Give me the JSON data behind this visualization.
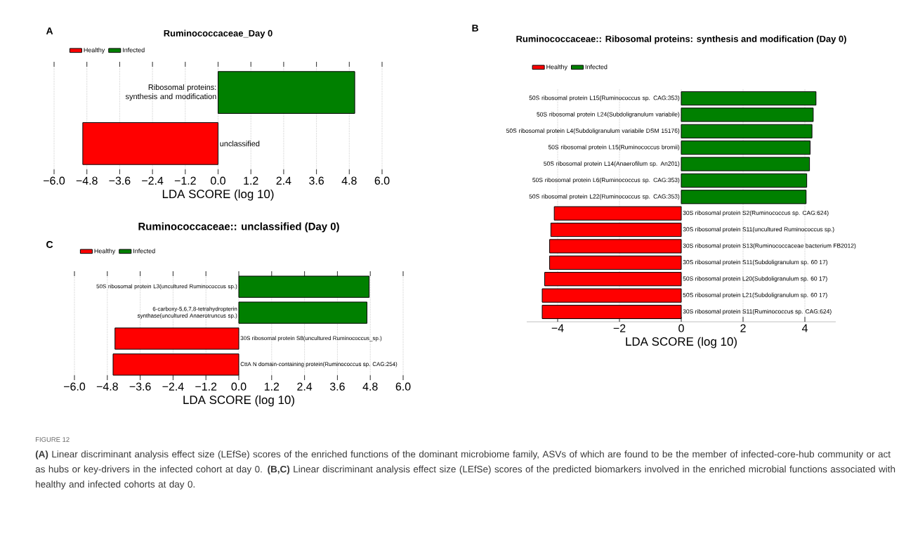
{
  "chart_data": [
    {
      "type": "bar",
      "orientation": "horizontal",
      "title": "Ruminococcaceae_Day 0",
      "xlabel": "LDA SCORE (log 10)",
      "categories": [
        "Ribosomal proteins: synthesis and modification",
        "unclassified"
      ],
      "series": [
        {
          "name": "Healthy",
          "color": "#ff0000",
          "values": [
            null,
            -4.95
          ]
        },
        {
          "name": "Infected",
          "color": "#008000",
          "values": [
            5.0,
            null
          ]
        }
      ],
      "xlim": [
        -6,
        6
      ],
      "xticks": [
        {
          "value": -6,
          "label": "−6.0"
        },
        {
          "value": -4.8,
          "label": "−4.8"
        },
        {
          "value": -3.6,
          "label": "−3.6"
        },
        {
          "value": -2.4,
          "label": "−2.4"
        },
        {
          "value": -1.2,
          "label": "−1.2"
        },
        {
          "value": 0,
          "label": "0.0"
        },
        {
          "value": 1.2,
          "label": "1.2"
        },
        {
          "value": 2.4,
          "label": "2.4"
        },
        {
          "value": 3.6,
          "label": "3.6"
        },
        {
          "value": 4.8,
          "label": "4.8"
        },
        {
          "value": 6,
          "label": "6.0"
        }
      ],
      "grid": "x",
      "legend": "top left",
      "annotations": [
        "A"
      ]
    },
    {
      "type": "bar",
      "orientation": "horizontal",
      "title": "Ruminococcaceae:: Ribosomal proteins: synthesis and modification (Day 0)",
      "xlabel": "LDA SCORE (log 10)",
      "categories": [
        "50S ribosomal protein L15(Ruminococcus sp. CAG:353)",
        "50S ribosomal protein L24(Subdoligranulum variabile)",
        "50S ribosomal protein L4(Subdoligranulum variabile DSM 15176)",
        "50S ribosomal protein L15(Ruminococcus bromii)",
        "50S ribosomal protein L14(Anaerofilum sp. An201)",
        "50S ribosomal protein L6(Ruminococcus sp. CAG:353)",
        "50S ribosomal protein L22(Ruminococcus sp. CAG:353)",
        "30S ribosomal protein S2(Ruminococcus sp. CAG:624)",
        "30S ribosomal protein S11(uncultured Ruminococcus sp.)",
        "30S ribosomal protein S13(Ruminococcaceae bacterium FB2012)",
        "30S ribosomal protein S11(Subdoligranulum sp. 60 17)",
        "50S ribosomal protein L20(Subdoligranulum sp. 60 17)",
        "50S ribosomal protein L21(Subdoligranulum sp. 60 17)",
        "30S ribosomal protein S11(Ruminococcus sp. CAG:624)"
      ],
      "series": [
        {
          "name": "Healthy",
          "color": "#ff0000",
          "values": [
            null,
            null,
            null,
            null,
            null,
            null,
            null,
            -4.11,
            -4.22,
            -4.26,
            -4.26,
            -4.42,
            -4.5,
            -4.5
          ]
        },
        {
          "name": "Infected",
          "color": "#008000",
          "values": [
            4.36,
            4.27,
            4.23,
            4.17,
            4.15,
            4.06,
            4.04,
            null,
            null,
            null,
            null,
            null,
            null,
            null
          ]
        }
      ],
      "xlim": [
        -5,
        5
      ],
      "xticks": [
        {
          "value": -4,
          "label": "−4"
        },
        {
          "value": -2,
          "label": "−2"
        },
        0,
        2,
        4
      ],
      "grid": "x",
      "legend": "top left",
      "annotations": [
        "B"
      ]
    },
    {
      "type": "bar",
      "orientation": "horizontal",
      "title": "Ruminococcaceae:: unclassified (Day 0)",
      "xlabel": "LDA SCORE (log 10)",
      "categories": [
        "50S ribosomal protein L3(uncultured Ruminococcus sp.)",
        "6-carboxy-5,6,7,8-tetrahydropterin synthase(uncultured Anaerotruncus sp.)",
        "30S ribosomal protein S8(uncultured Ruminococcus_sp.)",
        "CttA N domain-containing protein(Ruminococcus sp. CAG:254)"
      ],
      "series": [
        {
          "name": "Healthy",
          "color": "#ff0000",
          "values": [
            null,
            null,
            -4.52,
            -4.59
          ]
        },
        {
          "name": "Infected",
          "color": "#008000",
          "values": [
            4.76,
            4.68,
            null,
            null
          ]
        }
      ],
      "xlim": [
        -6,
        6
      ],
      "xticks": [
        {
          "value": -6,
          "label": "−6.0"
        },
        {
          "value": -4.8,
          "label": "−4.8"
        },
        {
          "value": -3.6,
          "label": "−3.6"
        },
        {
          "value": -2.4,
          "label": "−2.4"
        },
        {
          "value": -1.2,
          "label": "−1.2"
        },
        {
          "value": 0,
          "label": "0.0"
        },
        {
          "value": 1.2,
          "label": "1.2"
        },
        {
          "value": 2.4,
          "label": "2.4"
        },
        {
          "value": 3.6,
          "label": "3.6"
        },
        {
          "value": 4.8,
          "label": "4.8"
        },
        {
          "value": 6,
          "label": "6.0"
        }
      ],
      "grid": "x",
      "legend": "top left",
      "annotations": [
        "C",
        "FIGURE 12",
        "**(A)** Linear discriminant analysis effect size (LEfSe) scores of the enriched functions of the dominant microbiome family, ASVs of which are found to be the member of infected-core-hub community or act as hubs or key-drivers in the infected cohort at day 0. **(B,C)** Linear discriminant analysis effect size (LEfSe) scores of the predicted biomarkers involved in the enriched microbial functions associated with healthy and infected cohorts at day 0."
      ]
    }
  ]
}
